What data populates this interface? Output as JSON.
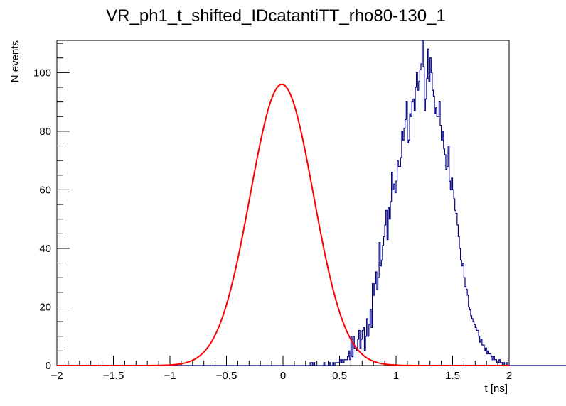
{
  "chart_data": {
    "type": "histogram",
    "title": "VR_ph1_t_shifted_IDcatantiTT_rho80-130_1",
    "xlabel": "t [ns]",
    "ylabel": "N events",
    "xlim": [
      -2,
      2
    ],
    "ylim": [
      0,
      111
    ],
    "grid": false,
    "x_ticks": [
      -2,
      -1.5,
      -1,
      -0.5,
      0,
      0.5,
      1,
      1.5,
      2
    ],
    "x_tick_labels": [
      "−2",
      "−1.5",
      "−1",
      "−0.5",
      "0",
      "0.5",
      "1",
      "1.5",
      "2"
    ],
    "y_ticks": [
      0,
      20,
      40,
      60,
      80,
      100
    ],
    "y_tick_labels": [
      "0",
      "20",
      "40",
      "60",
      "80",
      "100"
    ],
    "histogram": {
      "color": "#000080",
      "bin_start": -2.0,
      "bin_width": 0.01,
      "counts": [
        0,
        0,
        0,
        0,
        0,
        0,
        0,
        0,
        0,
        0,
        0,
        0,
        0,
        0,
        0,
        0,
        0,
        0,
        0,
        0,
        0,
        0,
        0,
        0,
        0,
        0,
        0,
        0,
        0,
        0,
        0,
        0,
        0,
        0,
        0,
        0,
        0,
        0,
        0,
        0,
        0,
        0,
        0,
        0,
        0,
        0,
        0,
        0,
        0,
        0,
        0,
        0,
        0,
        0,
        0,
        0,
        0,
        0,
        0,
        0,
        0,
        0,
        0,
        0,
        0,
        0,
        0,
        0,
        0,
        0,
        0,
        0,
        0,
        0,
        0,
        0,
        0,
        0,
        0,
        0,
        0,
        0,
        0,
        0,
        0,
        0,
        0,
        0,
        0,
        0,
        0,
        0,
        0,
        0,
        0,
        0,
        0,
        0,
        0,
        0,
        0,
        0,
        0,
        0,
        0,
        0,
        0,
        0,
        0,
        0,
        0,
        0,
        0,
        0,
        0,
        0,
        0,
        0,
        0,
        0,
        0,
        0,
        0,
        0,
        0,
        0,
        0,
        0,
        0,
        0,
        0,
        0,
        0,
        0,
        0,
        0,
        0,
        0,
        0,
        0,
        0,
        0,
        0,
        0,
        0,
        0,
        0,
        0,
        0,
        0,
        0,
        0,
        0,
        0,
        0,
        0,
        0,
        0,
        0,
        0,
        0,
        0,
        0,
        0,
        0,
        0,
        0,
        0,
        0,
        0,
        0,
        0,
        0,
        0,
        0,
        0,
        0,
        0,
        0,
        0,
        0,
        0,
        0,
        0,
        0,
        0,
        0,
        0,
        0,
        0,
        0,
        0,
        0,
        0,
        0,
        0,
        0,
        0,
        0,
        0,
        0,
        0,
        0,
        0,
        0,
        0,
        0,
        0,
        0,
        0,
        0,
        0,
        0,
        0,
        0,
        0,
        0,
        0,
        0,
        0,
        0,
        0,
        0,
        0,
        1,
        1,
        0,
        1,
        0,
        0,
        0,
        0,
        0,
        0,
        0,
        0,
        1,
        0,
        0,
        0,
        0,
        1,
        0,
        0,
        1,
        0,
        1,
        1,
        1,
        1,
        2,
        1,
        2,
        1,
        2,
        2,
        2,
        3,
        5,
        2,
        10,
        3,
        10,
        6,
        6,
        5,
        9,
        12,
        6,
        9,
        12,
        13,
        5,
        10,
        16,
        10,
        14,
        19,
        13,
        28,
        24,
        28,
        32,
        26,
        30,
        42,
        34,
        36,
        41,
        44,
        48,
        53,
        43,
        54,
        50,
        56,
        66,
        60,
        62,
        59,
        63,
        70,
        68,
        68,
        71,
        80,
        77,
        81,
        84,
        90,
        76,
        77,
        86,
        85,
        90,
        91,
        87,
        95,
        100,
        94,
        97,
        101,
        103,
        111,
        102,
        87,
        91,
        98,
        108,
        97,
        105,
        100,
        94,
        92,
        86,
        88,
        85,
        85,
        90,
        82,
        77,
        80,
        74,
        72,
        67,
        68,
        75,
        63,
        60,
        64,
        60,
        57,
        53,
        52,
        48,
        44,
        40,
        36,
        34,
        35,
        30,
        27,
        26,
        24,
        20,
        19,
        17,
        16,
        15,
        14,
        13,
        12,
        12,
        10,
        8,
        9,
        7,
        7,
        5,
        6,
        4,
        5,
        4,
        4,
        3,
        2,
        3,
        2,
        2,
        1,
        1,
        2,
        1,
        1,
        0,
        1,
        0,
        0,
        1,
        0,
        0,
        0,
        0,
        0,
        0,
        0,
        0,
        0,
        0,
        0,
        0,
        0,
        0,
        0,
        0,
        0,
        0,
        0,
        0,
        0,
        0,
        0,
        0,
        0,
        0,
        0,
        0,
        0,
        0,
        0,
        0,
        0,
        0,
        0,
        0,
        0,
        0,
        0,
        0,
        0,
        0,
        0,
        0,
        0,
        0,
        0,
        0,
        0,
        0,
        0,
        0,
        0,
        0,
        0,
        0,
        0,
        0,
        0,
        0,
        0,
        0,
        0,
        0,
        0,
        0,
        0,
        0,
        0,
        0,
        0,
        0,
        0,
        0,
        0,
        0,
        0,
        0,
        0,
        0,
        0,
        0,
        0,
        0,
        0,
        0,
        0,
        0,
        0,
        0,
        0,
        0,
        0,
        0,
        0,
        0,
        0,
        0,
        0,
        0,
        0,
        0,
        0,
        0,
        0,
        0,
        0,
        0,
        0,
        0,
        0,
        0,
        0
      ]
    },
    "series": [
      {
        "type": "line",
        "color": "#ff0000",
        "gaussian": {
          "amplitude": 96,
          "mean": -0.01,
          "sigma": 0.28
        },
        "x_range": [
          -2,
          2
        ]
      }
    ]
  }
}
